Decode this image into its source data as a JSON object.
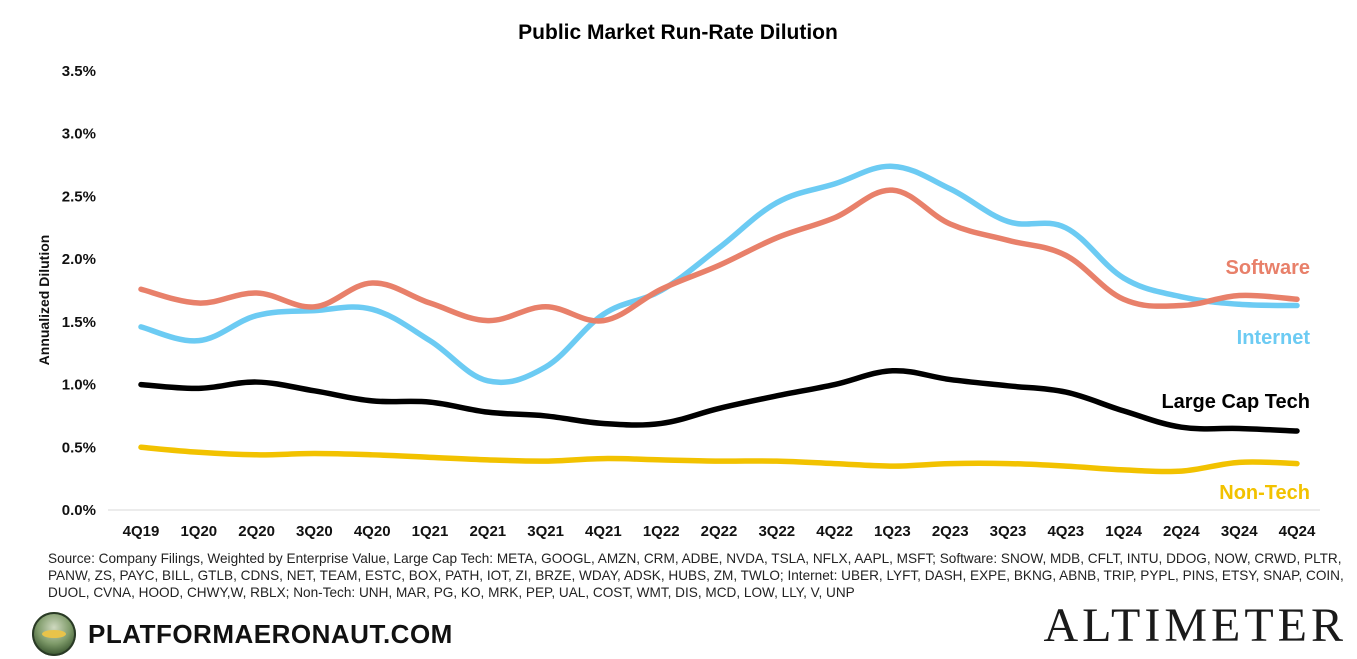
{
  "chart_data": {
    "type": "line",
    "title": "Public Market Run-Rate Dilution",
    "xlabel": "",
    "ylabel": "Annualized Dilution",
    "categories": [
      "4Q19",
      "1Q20",
      "2Q20",
      "3Q20",
      "4Q20",
      "1Q21",
      "2Q21",
      "3Q21",
      "4Q21",
      "1Q22",
      "2Q22",
      "3Q22",
      "4Q22",
      "1Q23",
      "2Q23",
      "3Q23",
      "4Q23",
      "1Q24",
      "2Q24",
      "3Q24",
      "4Q24"
    ],
    "y_ticks": [
      "0.0%",
      "0.5%",
      "1.0%",
      "1.5%",
      "2.0%",
      "2.5%",
      "3.0%",
      "3.5%"
    ],
    "ylim": [
      0,
      3.5
    ],
    "grid": false,
    "legend": "labels at right end of each series",
    "series": [
      {
        "name": "Software",
        "color": "#E8806A",
        "values": [
          1.76,
          1.65,
          1.73,
          1.62,
          1.81,
          1.65,
          1.51,
          1.62,
          1.51,
          1.76,
          1.95,
          2.17,
          2.33,
          2.55,
          2.28,
          2.15,
          2.03,
          1.68,
          1.63,
          1.71,
          1.68
        ]
      },
      {
        "name": "Internet",
        "color": "#6CCBF3",
        "values": [
          1.46,
          1.35,
          1.55,
          1.59,
          1.6,
          1.35,
          1.03,
          1.14,
          1.56,
          1.75,
          2.09,
          2.45,
          2.6,
          2.74,
          2.56,
          2.3,
          2.25,
          1.85,
          1.7,
          1.64,
          1.63
        ]
      },
      {
        "name": "Large Cap Tech",
        "color": "#000000",
        "values": [
          1.0,
          0.97,
          1.02,
          0.95,
          0.87,
          0.86,
          0.78,
          0.75,
          0.69,
          0.69,
          0.81,
          0.91,
          1.0,
          1.11,
          1.04,
          0.99,
          0.94,
          0.79,
          0.66,
          0.65,
          0.63
        ]
      },
      {
        "name": "Non-Tech",
        "color": "#F2C200",
        "values": [
          0.5,
          0.46,
          0.44,
          0.45,
          0.44,
          0.42,
          0.4,
          0.39,
          0.41,
          0.4,
          0.39,
          0.39,
          0.37,
          0.35,
          0.37,
          0.37,
          0.35,
          0.32,
          0.31,
          0.38,
          0.37
        ]
      }
    ]
  },
  "source_text": "Source: Company Filings, Weighted by Enterprise Value, Large Cap Tech: META, GOOGL, AMZN, CRM, ADBE, NVDA, TSLA, NFLX, AAPL, MSFT; Software: SNOW, MDB, CFLT, INTU, DDOG, NOW, CRWD, PLTR, PANW, ZS, PAYC, BILL, GTLB, CDNS, NET, TEAM, ESTC, BOX, PATH, IOT, ZI, BRZE, WDAY, ADSK, HUBS, ZM, TWLO; Internet: UBER, LYFT, DASH, EXPE, BKNG, ABNB, TRIP, PYPL, PINS, ETSY, SNAP, COIN, DUOL, CVNA, HOOD, CHWY,W, RBLX; Non-Tech: UNH, MAR, PG, KO, MRK, PEP, UAL, COST, WMT, DIS, MCD, LOW, LLY, V, UNP",
  "brand": {
    "left_text": "PLATFORMAERONAUT.COM",
    "left_logo_icon": "platformaeronaut-logo-icon",
    "right_text": "ALTIMETER"
  }
}
